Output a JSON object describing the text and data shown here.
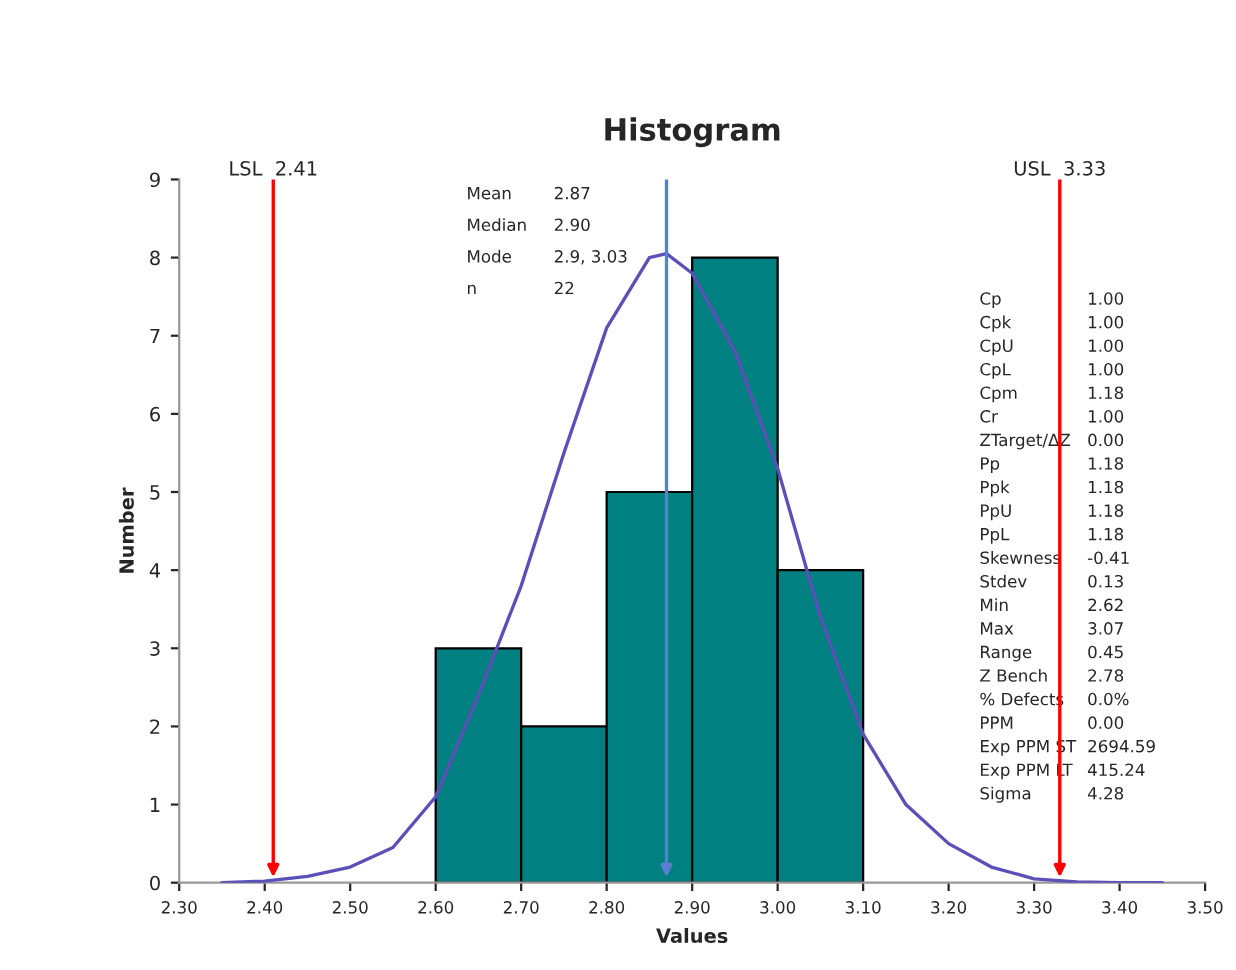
{
  "chart_data": {
    "type": "histogram",
    "title": "Histogram",
    "xlabel": "Values",
    "ylabel": "Number",
    "bins": [
      2.6,
      2.7,
      2.8,
      2.9,
      3.0,
      3.1
    ],
    "values": [
      3,
      2,
      5,
      8,
      4
    ],
    "color": "#008080",
    "series": [
      {
        "type": "line",
        "color": "#5a50b8",
        "x": [
          2.35,
          2.4,
          2.45,
          2.5,
          2.55,
          2.6,
          2.65,
          2.7,
          2.75,
          2.8,
          2.85,
          2.87,
          2.9,
          2.95,
          3.0,
          3.05,
          3.1,
          3.15,
          3.2,
          3.25,
          3.3,
          3.35,
          3.4,
          3.45
        ],
        "values": [
          0,
          0.02,
          0.08,
          0.2,
          0.45,
          1.1,
          2.4,
          3.8,
          5.5,
          7.1,
          8.0,
          8.05,
          7.8,
          6.8,
          5.3,
          3.4,
          1.9,
          1.0,
          0.5,
          0.2,
          0.05,
          0.01,
          0,
          0
        ]
      }
    ],
    "ref_lines": [
      {
        "axis": "x",
        "value": 2.41,
        "label": "LSL  2.41",
        "color": "#ff0000"
      },
      {
        "axis": "x",
        "value": 3.33,
        "label": "USL  3.33",
        "color": "#ff0000"
      },
      {
        "axis": "x",
        "value": 2.87,
        "label": null,
        "color": "#5b7fd0"
      }
    ],
    "annotations": [
      "Mean\t2.87",
      "Median\t2.90",
      "Mode\t2.9, 3.03",
      "n\t22",
      "Cp\t1.00",
      "Cpk\t1.00",
      "CpU\t1.00",
      "CpL\t1.00",
      "Cpm\t1.18",
      "Cr\t1.00",
      "ZTarget/ΔZ\t0.00",
      "Pp\t1.18",
      "Ppk\t1.18",
      "PpU\t1.18",
      "PpL\t1.18",
      "Skewness\t-0.41",
      "Stdev\t0.13",
      "Min\t2.62",
      "Max\t3.07",
      "Range\t0.45",
      "Z Bench\t2.78",
      "% Defects\t0.0%",
      "PPM\t0.00",
      "Exp PPM ST\t2694.59",
      "Exp PPM LT\t415.24",
      "Sigma\t4.28"
    ],
    "xlim": [
      2.3,
      3.5
    ],
    "xticks": [
      {
        "value": 2.3,
        "label": "2.30"
      },
      {
        "value": 2.4,
        "label": "2.40"
      },
      {
        "value": 2.5,
        "label": "2.50"
      },
      {
        "value": 2.6,
        "label": "2.60"
      },
      {
        "value": 2.7,
        "label": "2.70"
      },
      {
        "value": 2.8,
        "label": "2.80"
      },
      {
        "value": 2.9,
        "label": "2.90"
      },
      {
        "value": 3.0,
        "label": "3.00"
      },
      {
        "value": 3.1,
        "label": "3.10"
      },
      {
        "value": 3.2,
        "label": "3.20"
      },
      {
        "value": 3.3,
        "label": "3.30"
      },
      {
        "value": 3.4,
        "label": "3.40"
      },
      {
        "value": 3.5,
        "label": "3.50"
      }
    ],
    "ylim": [
      0,
      9
    ],
    "yticks": [
      0,
      1,
      2,
      3,
      4,
      5,
      6,
      7,
      8,
      9
    ],
    "grid": false,
    "legend": false
  }
}
